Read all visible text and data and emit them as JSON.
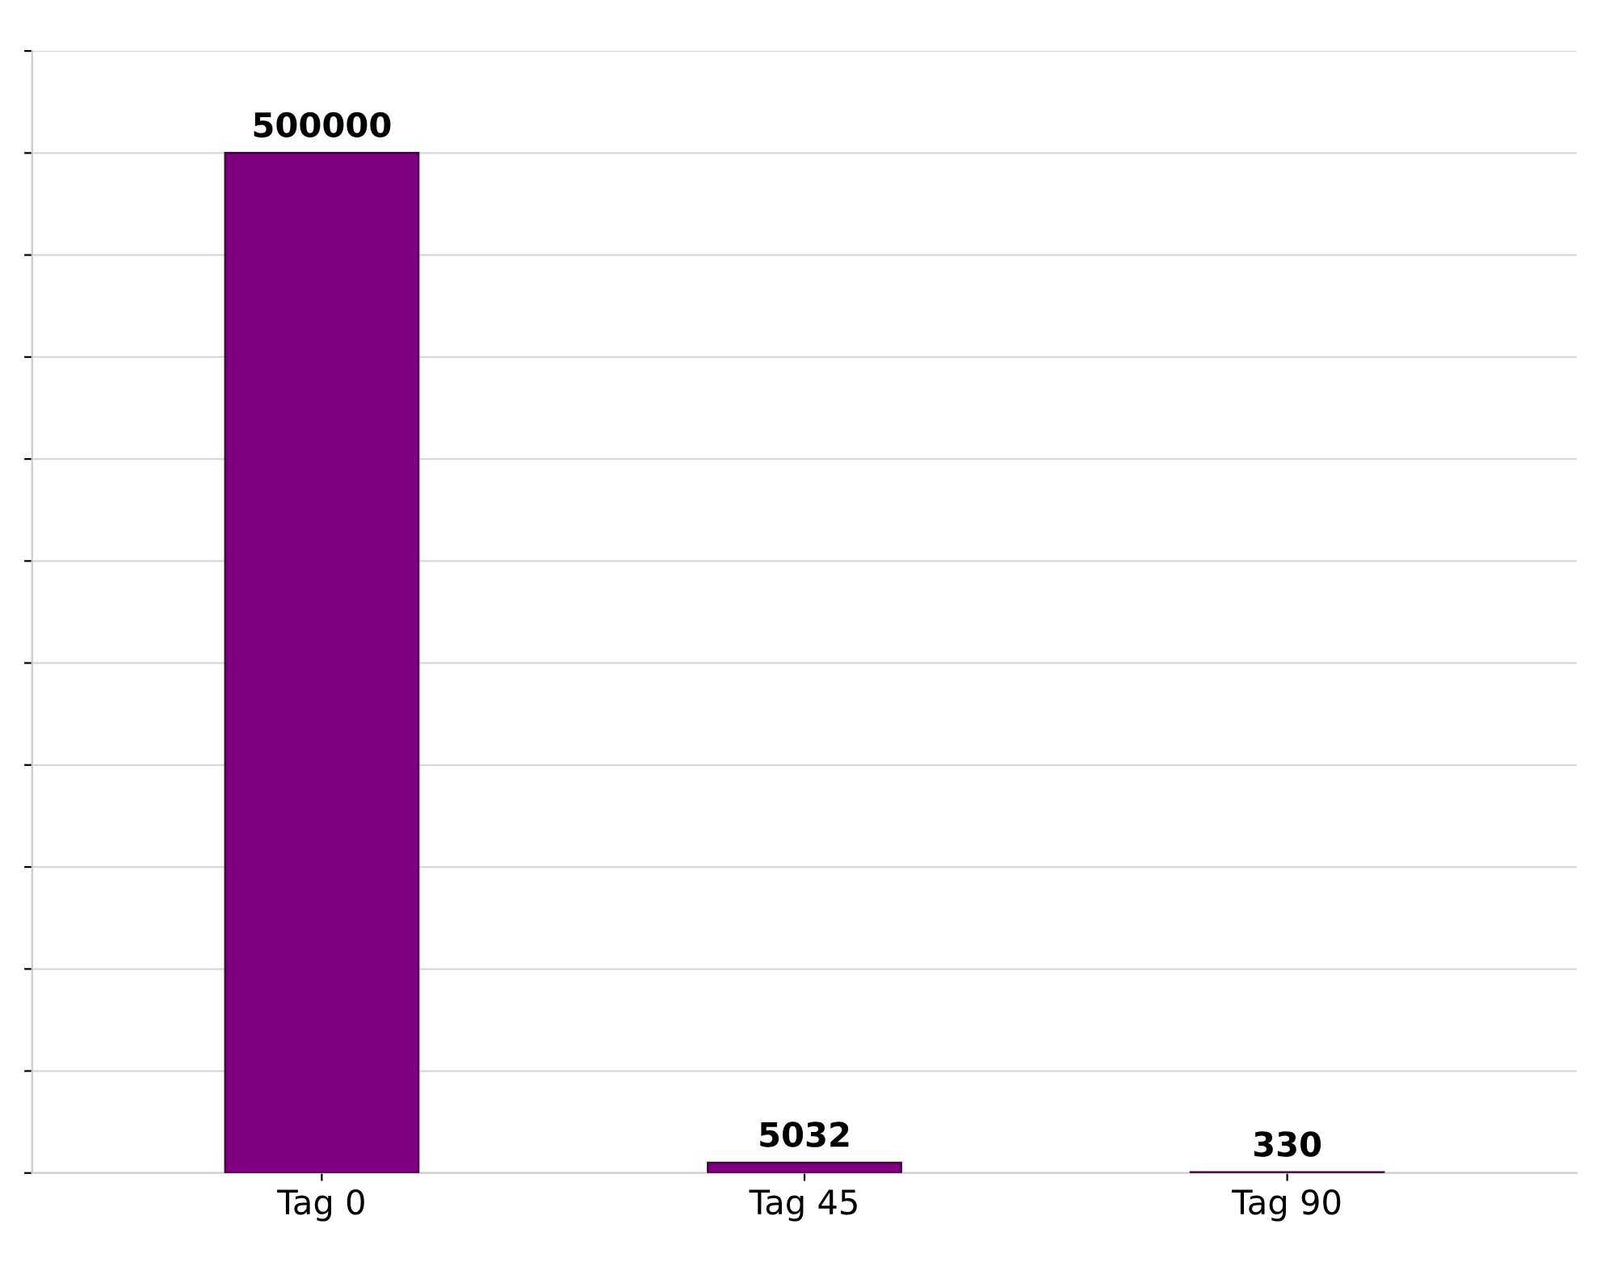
{
  "chart_data": {
    "type": "bar",
    "categories": [
      "Tag 0",
      "Tag 45",
      "Tag 90"
    ],
    "values": [
      500000,
      5032,
      330
    ],
    "color": "#800080",
    "data_labels": true,
    "ylim": [
      0,
      550000
    ],
    "yticks": [
      {
        "value": 0,
        "label": null
      },
      {
        "value": 50000,
        "label": null
      },
      {
        "value": 100000,
        "label": null
      },
      {
        "value": 150000,
        "label": null
      },
      {
        "value": 200000,
        "label": null
      },
      {
        "value": 250000,
        "label": null
      },
      {
        "value": 300000,
        "label": null
      },
      {
        "value": 350000,
        "label": null
      },
      {
        "value": 400000,
        "label": null
      },
      {
        "value": 450000,
        "label": null
      },
      {
        "value": 500000,
        "label": null
      },
      {
        "value": 550000,
        "label": null
      }
    ],
    "grid": "y",
    "tick_labels": "x"
  }
}
